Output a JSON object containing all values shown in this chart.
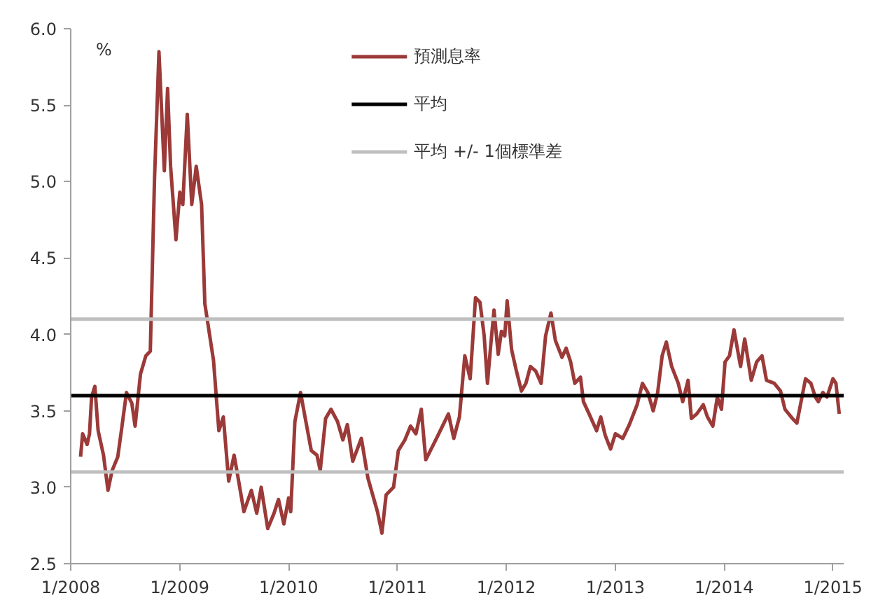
{
  "chart_data": {
    "type": "line",
    "ylabel": "%",
    "xlim": [
      "2008-01-01",
      "2015-02-06"
    ],
    "ylim": [
      2.5,
      6.0
    ],
    "xticks": [
      {
        "value": "2008-01",
        "label": "1/2008"
      },
      {
        "value": "2009-01",
        "label": "1/2009"
      },
      {
        "value": "2010-01",
        "label": "1/2010"
      },
      {
        "value": "2011-01",
        "label": "1/2011"
      },
      {
        "value": "2012-01",
        "label": "1/2012"
      },
      {
        "value": "2013-01",
        "label": "1/2013"
      },
      {
        "value": "2014-01",
        "label": "1/2014"
      },
      {
        "value": "2015-01",
        "label": "1/2015"
      }
    ],
    "yticks": [
      {
        "value": 2.5,
        "label": "2.5"
      },
      {
        "value": 3,
        "label": "3.0"
      },
      {
        "value": 3.5,
        "label": "3.5"
      },
      {
        "value": 4,
        "label": "4.0"
      },
      {
        "value": 4.5,
        "label": "4.5"
      },
      {
        "value": 5,
        "label": "5.0"
      },
      {
        "value": 5.5,
        "label": "5.5"
      },
      {
        "value": 6,
        "label": "6.0"
      }
    ],
    "grid": false,
    "legend": "top",
    "marker": "none",
    "line_style": "solid",
    "series": [
      {
        "name": "預測息率",
        "color": "#9b3a38",
        "x": [
          "2008-02-03",
          "2008-02-10",
          "2008-02-25",
          "2008-03-04",
          "2008-03-11",
          "2008-03-22",
          "2008-04-02",
          "2008-04-20",
          "2008-05-05",
          "2008-05-19",
          "2008-06-07",
          "2008-06-21",
          "2008-07-06",
          "2008-07-24",
          "2008-08-04",
          "2008-08-22",
          "2008-09-09",
          "2008-09-24",
          "2008-10-08",
          "2008-10-23",
          "2008-11-10",
          "2008-11-21",
          "2008-12-01",
          "2008-12-19",
          "2009-01-01",
          "2009-01-11",
          "2009-01-26",
          "2009-02-10",
          "2009-02-25",
          "2009-03-15",
          "2009-03-26",
          "2009-04-24",
          "2009-05-12",
          "2009-05-27",
          "2009-06-14",
          "2009-07-02",
          "2009-07-13",
          "2009-08-04",
          "2009-08-29",
          "2009-09-16",
          "2009-10-01",
          "2009-10-23",
          "2009-11-13",
          "2009-11-28",
          "2009-12-16",
          "2010-01-01",
          "2010-01-08",
          "2010-01-22",
          "2010-02-10",
          "2010-02-25",
          "2010-03-18",
          "2010-04-06",
          "2010-04-17",
          "2010-05-05",
          "2010-05-23",
          "2010-06-14",
          "2010-07-02",
          "2010-07-17",
          "2010-08-04",
          "2010-09-02",
          "2010-09-24",
          "2010-10-26",
          "2010-11-10",
          "2010-11-24",
          "2010-12-19",
          "2011-01-04",
          "2011-01-26",
          "2011-02-14",
          "2011-03-04",
          "2011-03-22",
          "2011-04-06",
          "2011-05-12",
          "2011-06-21",
          "2011-07-09",
          "2011-07-28",
          "2011-08-15",
          "2011-09-02",
          "2011-09-20",
          "2011-10-05",
          "2011-10-19",
          "2011-10-30",
          "2011-11-10",
          "2011-11-21",
          "2011-12-05",
          "2011-12-16",
          "2011-12-27",
          "2012-01-04",
          "2012-01-19",
          "2012-02-03",
          "2012-02-21",
          "2012-03-07",
          "2012-03-22",
          "2012-04-09",
          "2012-04-27",
          "2012-05-12",
          "2012-05-30",
          "2012-06-14",
          "2012-07-06",
          "2012-07-20",
          "2012-08-04",
          "2012-08-18",
          "2012-09-06",
          "2012-09-16",
          "2012-10-05",
          "2012-10-30",
          "2012-11-13",
          "2012-11-28",
          "2012-12-16",
          "2013-01-01",
          "2013-01-26",
          "2013-02-17",
          "2013-03-15",
          "2013-04-02",
          "2013-04-20",
          "2013-05-08",
          "2013-05-23",
          "2013-06-07",
          "2013-06-21",
          "2013-07-09",
          "2013-07-31",
          "2013-08-15",
          "2013-09-02",
          "2013-09-13",
          "2013-10-01",
          "2013-10-23",
          "2013-11-06",
          "2013-11-24",
          "2013-12-09",
          "2013-12-23",
          "2014-01-04",
          "2014-01-19",
          "2014-02-03",
          "2014-02-25",
          "2014-03-11",
          "2014-04-02",
          "2014-04-20",
          "2014-05-08",
          "2014-05-23",
          "2014-06-18",
          "2014-07-09",
          "2014-07-24",
          "2014-08-18",
          "2014-09-02",
          "2014-09-16",
          "2014-10-01",
          "2014-10-19",
          "2014-11-03",
          "2014-11-13",
          "2014-11-28",
          "2014-12-12",
          "2015-01-01",
          "2015-01-11",
          "2015-01-22"
        ],
        "values": [
          3.2,
          3.35,
          3.28,
          3.35,
          3.59,
          3.66,
          3.37,
          3.21,
          2.98,
          3.11,
          3.2,
          3.4,
          3.62,
          3.55,
          3.4,
          3.74,
          3.86,
          3.89,
          5.01,
          5.85,
          5.07,
          5.61,
          5.1,
          4.62,
          4.93,
          4.85,
          5.44,
          4.85,
          5.1,
          4.85,
          4.2,
          3.83,
          3.37,
          3.46,
          3.04,
          3.21,
          3.09,
          2.84,
          2.98,
          2.83,
          3.0,
          2.73,
          2.83,
          2.92,
          2.76,
          2.93,
          2.84,
          3.43,
          3.62,
          3.46,
          3.24,
          3.21,
          3.11,
          3.45,
          3.51,
          3.43,
          3.31,
          3.41,
          3.17,
          3.32,
          3.06,
          2.84,
          2.7,
          2.95,
          3.0,
          3.24,
          3.31,
          3.4,
          3.35,
          3.51,
          3.18,
          3.32,
          3.48,
          3.32,
          3.46,
          3.86,
          3.71,
          4.24,
          4.21,
          3.99,
          3.68,
          3.93,
          4.16,
          3.87,
          4.02,
          3.99,
          4.22,
          3.9,
          3.77,
          3.63,
          3.68,
          3.79,
          3.76,
          3.68,
          3.99,
          4.14,
          3.96,
          3.85,
          3.91,
          3.82,
          3.68,
          3.72,
          3.56,
          3.48,
          3.37,
          3.46,
          3.34,
          3.25,
          3.35,
          3.32,
          3.41,
          3.54,
          3.68,
          3.62,
          3.5,
          3.62,
          3.86,
          3.95,
          3.79,
          3.68,
          3.56,
          3.7,
          3.45,
          3.48,
          3.54,
          3.46,
          3.4,
          3.59,
          3.51,
          3.82,
          3.86,
          4.03,
          3.79,
          3.97,
          3.7,
          3.82,
          3.86,
          3.7,
          3.68,
          3.63,
          3.51,
          3.45,
          3.42,
          3.56,
          3.71,
          3.68,
          3.59,
          3.56,
          3.62,
          3.59,
          3.71,
          3.68,
          3.48
        ]
      }
    ],
    "ref_lines": [
      {
        "axis": "y",
        "value": 3.6,
        "label": "平均",
        "color": "#000000"
      },
      {
        "axis": "y",
        "value": 4.1,
        "label": "平均 +/- 1個標準差",
        "color": "#bfbfbf"
      },
      {
        "axis": "y",
        "value": 3.1,
        "color": "#bfbfbf"
      }
    ]
  }
}
